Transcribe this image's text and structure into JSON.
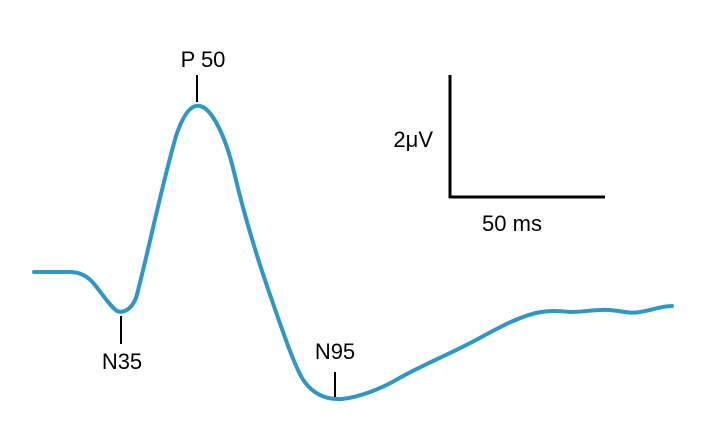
{
  "colors": {
    "waveform": "#2E97C7",
    "annotation": "#000000",
    "background": "#ffffff"
  },
  "peaks": {
    "p50": "P 50",
    "n35": "N35",
    "n95": "N95"
  },
  "scale_bar": {
    "amplitude_label": "2μV",
    "time_label": "50 ms"
  }
}
